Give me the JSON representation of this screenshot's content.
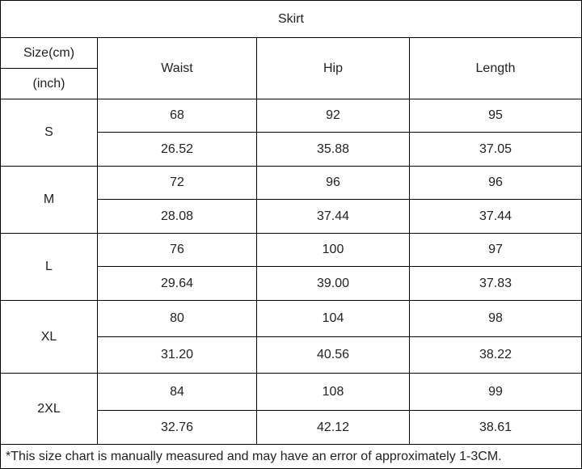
{
  "title": "Skirt",
  "header": {
    "size_label": "Size(cm)",
    "unit_label": "(inch)",
    "columns": [
      "Waist",
      "Hip",
      "Length"
    ]
  },
  "rows": [
    {
      "size": "S",
      "cm": [
        "68",
        "92",
        "95"
      ],
      "inch": [
        "26.52",
        "35.88",
        "37.05"
      ]
    },
    {
      "size": "M",
      "cm": [
        "72",
        "96",
        "96"
      ],
      "inch": [
        "28.08",
        "37.44",
        "37.44"
      ]
    },
    {
      "size": "L",
      "cm": [
        "76",
        "100",
        "97"
      ],
      "inch": [
        "29.64",
        "39.00",
        "37.83"
      ]
    },
    {
      "size": "XL",
      "cm": [
        "80",
        "104",
        "98"
      ],
      "inch": [
        "31.20",
        "40.56",
        "38.22"
      ]
    },
    {
      "size": "2XL",
      "cm": [
        "84",
        "108",
        "99"
      ],
      "inch": [
        "32.76",
        "42.12",
        "38.61"
      ]
    }
  ],
  "footnote": "*This size chart is manually measured and may have an error of approximately 1-3CM."
}
